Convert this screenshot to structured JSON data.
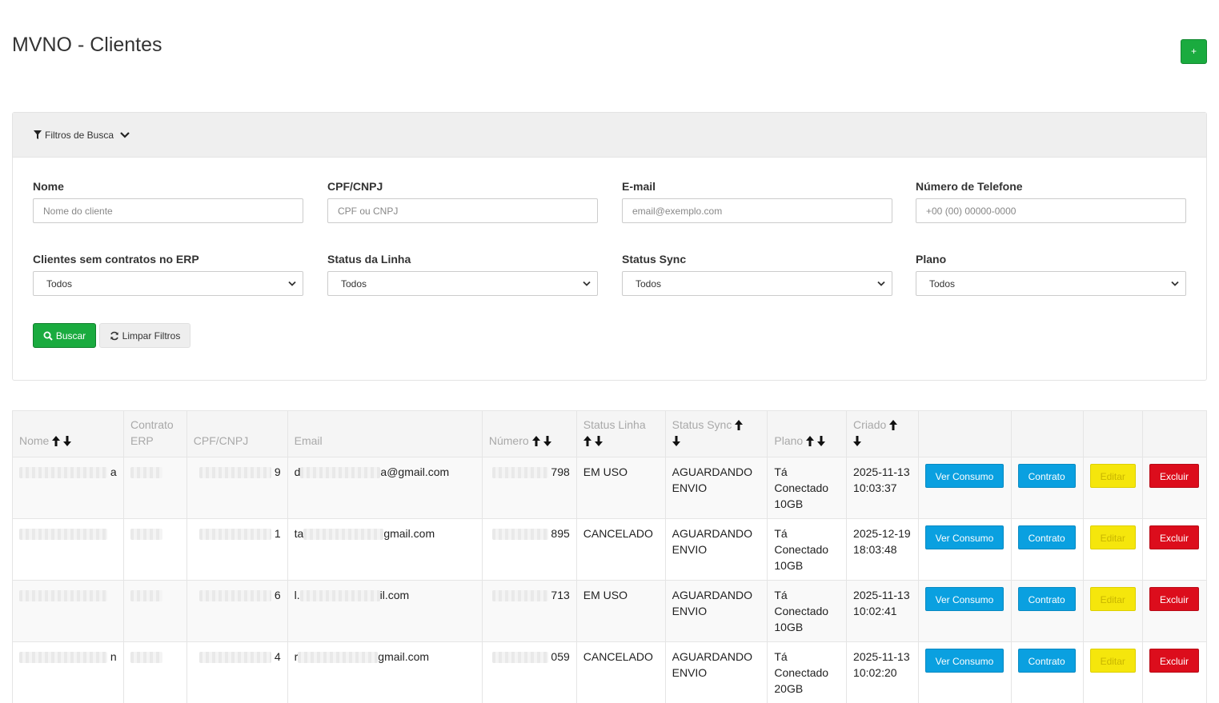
{
  "header": {
    "title": "MVNO - Clientes",
    "add_label": "+"
  },
  "filters": {
    "toggle_label": "Filtros de Busca",
    "fields": {
      "nome": {
        "label": "Nome",
        "placeholder": "Nome do cliente"
      },
      "cpf": {
        "label": "CPF/CNPJ",
        "placeholder": "CPF ou CNPJ"
      },
      "email": {
        "label": "E-mail",
        "placeholder": "email@exemplo.com"
      },
      "telefone": {
        "label": "Número de Telefone",
        "placeholder": "+00 (00) 00000-0000"
      },
      "sem_contrato": {
        "label": "Clientes sem contratos no ERP",
        "value": "Todos"
      },
      "status_linha": {
        "label": "Status da Linha",
        "value": "Todos"
      },
      "status_sync": {
        "label": "Status Sync",
        "value": "Todos"
      },
      "plano": {
        "label": "Plano",
        "value": "Todos"
      }
    },
    "search_label": "Buscar",
    "clear_label": "Limpar Filtros"
  },
  "table": {
    "headers": {
      "nome": "Nome",
      "contrato": "Contrato ERP",
      "cpf": "CPF/CNPJ",
      "email": "Email",
      "numero": "Número",
      "status_linha": "Status Linha",
      "status_sync": "Status Sync",
      "plano": "Plano",
      "criado": "Criado"
    },
    "actions": {
      "consumo": "Ver Consumo",
      "contrato": "Contrato",
      "editar": "Editar",
      "excluir": "Excluir"
    },
    "rows": [
      {
        "nome_suffix": "a",
        "cpf_suffix": "9",
        "email_prefix": "d",
        "email_suffix": "a@gmail.com",
        "numero_suffix": "798",
        "status_linha": "EM USO",
        "status_sync": "AGUARDANDO ENVIO",
        "plano": "Tá Conectado 10GB",
        "criado": "2025-11-13 10:03:37"
      },
      {
        "nome_suffix": "",
        "cpf_suffix": "1",
        "email_prefix": "ta",
        "email_suffix": "gmail.com",
        "numero_suffix": "895",
        "status_linha": "CANCELADO",
        "status_sync": "AGUARDANDO ENVIO",
        "plano": "Tá Conectado 10GB",
        "criado": "2025-12-19 18:03:48"
      },
      {
        "nome_suffix": "",
        "cpf_suffix": "6",
        "email_prefix": "l.",
        "email_suffix": "il.com",
        "numero_suffix": "713",
        "status_linha": "EM USO",
        "status_sync": "AGUARDANDO ENVIO",
        "plano": "Tá Conectado 10GB",
        "criado": "2025-11-13 10:02:41"
      },
      {
        "nome_suffix": "n",
        "cpf_suffix": "4",
        "email_prefix": "r",
        "email_suffix": "gmail.com",
        "numero_suffix": "059",
        "status_linha": "CANCELADO",
        "status_sync": "AGUARDANDO ENVIO",
        "plano": "Tá Conectado 20GB",
        "criado": "2025-11-13 10:02:20"
      }
    ]
  },
  "colors": {
    "success": "#1aab3f",
    "info": "#0aa0e0",
    "warning": "#f5e60c",
    "danger": "#dc0d1c"
  },
  "icons": {
    "filter": "filter-icon",
    "chevron": "chevron-down-icon",
    "search": "search-icon",
    "refresh": "refresh-icon",
    "sort_up": "arrow-up-icon",
    "sort_down": "arrow-down-icon"
  }
}
